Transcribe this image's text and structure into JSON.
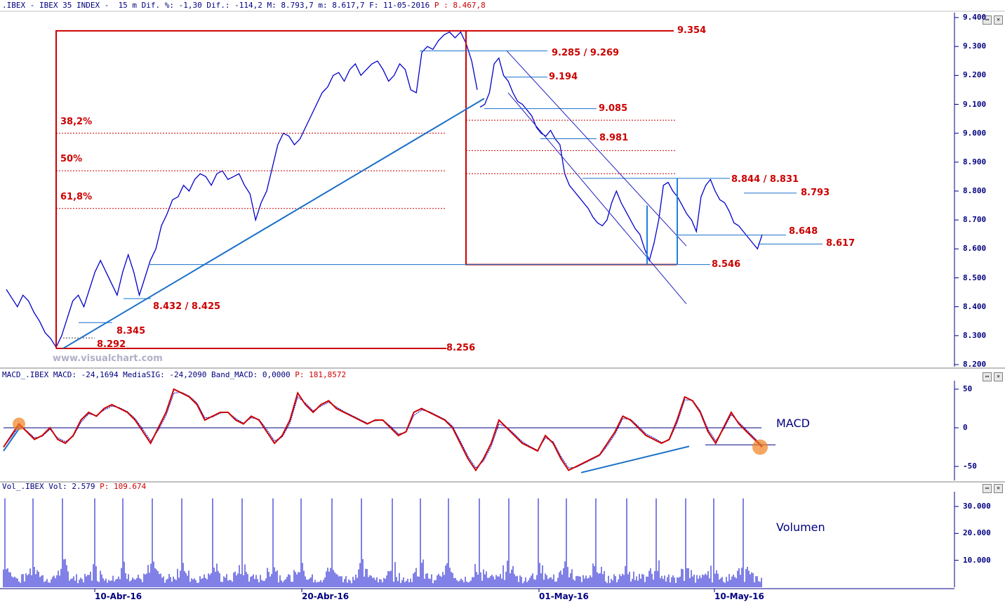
{
  "headers": {
    "price": {
      "label": ".IBEX - IBEX 35 INDEX -  15 m Dif. %: -1,30 Dif.: -114,2 M: 8.793,7 m: 8.617,7 F: 11-05-2016",
      "value": "P : 8.467,8"
    },
    "macd": {
      "label": "MACD_.IBEX MACD: -24,1694 MediaSIG: -24,2090 Band_MACD: 0,0000",
      "value": "P: 181,8572"
    },
    "volume": {
      "label": "Vol_.IBEX Vol: 2.579",
      "value": "P: 109.674"
    }
  },
  "watermark": "www.visualchart.com",
  "panel_labels": {
    "macd": "MACD",
    "volume": "Volumen"
  },
  "window_buttons": [
    "▭",
    "✕"
  ],
  "colors": {
    "price": "#0000cc",
    "macd": "#cc0000",
    "signal": "#0000cc",
    "annotation": "#cc0000",
    "trendline": "#1a6fc9",
    "fib": "#cc0000",
    "axis": "#000080"
  },
  "chart_data": [
    {
      "type": "line",
      "instrument": "IBEX 35 INDEX",
      "timeframe": "15 m",
      "ylim": [
        8200,
        9450
      ],
      "y_ticks": [
        "9.400",
        "9.300",
        "9.200",
        "9.100",
        "9.000",
        "8.900",
        "8.800",
        "8.700",
        "8.600",
        "8.500",
        "8.400",
        "8.300",
        "8.200"
      ],
      "x_ticks": [
        "10-Abr-16",
        "20-Abr-16",
        "01-May-16",
        "10-May-16"
      ],
      "series": [
        {
          "values": [
            8460,
            8430,
            8400,
            8440,
            8420,
            8380,
            8350,
            8310,
            8290,
            8260,
            8300,
            8360,
            8420,
            8440,
            8400,
            8460,
            8520,
            8560,
            8520,
            8480,
            8440,
            8520,
            8580,
            8520,
            8440,
            8500,
            8560,
            8600,
            8680,
            8720,
            8770,
            8780,
            8820,
            8800,
            8840,
            8860,
            8850,
            8820,
            8860,
            8870,
            8840,
            8850,
            8860,
            8820,
            8790,
            8700,
            8760,
            8800,
            8880,
            8960,
            9000,
            8990,
            8960,
            8980,
            9020,
            9060,
            9100,
            9140,
            9160,
            9200,
            9210,
            9180,
            9220,
            9240,
            9200,
            9220,
            9240,
            9250,
            9220,
            9180,
            9200,
            9240,
            9220,
            9150,
            9140,
            9280,
            9300,
            9290,
            9320,
            9340,
            9350,
            9330,
            9350,
            9310,
            9250,
            9150,
            9090,
            9100,
            9140,
            9240,
            9260,
            9200,
            9180,
            9140,
            9110,
            9100,
            9080,
            9060,
            9020,
            9000,
            8990,
            9010,
            8980,
            8960,
            8860,
            8820,
            8800,
            8780,
            8760,
            8740,
            8710,
            8690,
            8680,
            8700,
            8760,
            8800,
            8760,
            8730,
            8700,
            8670,
            8650,
            8600,
            8560,
            8620,
            8700,
            8820,
            8830,
            8800,
            8780,
            8750,
            8720,
            8700,
            8660,
            8780,
            8820,
            8840,
            8800,
            8770,
            8760,
            8730,
            8690,
            8680,
            8660,
            8640,
            8620,
            8600,
            8650
          ]
        }
      ],
      "annotations": [
        {
          "text": "9.354",
          "value": 9354
        },
        {
          "text": "9.285 / 9.269",
          "value": 9277
        },
        {
          "text": "9.194",
          "value": 9194
        },
        {
          "text": "9.085",
          "value": 9085
        },
        {
          "text": "8.981",
          "value": 8981
        },
        {
          "text": "8.844 / 8.831",
          "value": 8838
        },
        {
          "text": "8.793",
          "value": 8793
        },
        {
          "text": "8.648",
          "value": 8648
        },
        {
          "text": "8.617",
          "value": 8617
        },
        {
          "text": "8.546",
          "value": 8546
        },
        {
          "text": "8.432 / 8.425",
          "value": 8428
        },
        {
          "text": "8.345",
          "value": 8345
        },
        {
          "text": "8.292",
          "value": 8292
        },
        {
          "text": "8.256",
          "value": 8256
        }
      ],
      "fibonacci": [
        {
          "label": "38,2%",
          "value": 9000
        },
        {
          "label": "50%",
          "value": 8870
        },
        {
          "label": "61,8%",
          "value": 8740
        }
      ]
    },
    {
      "type": "line",
      "name": "MACD",
      "ylim": [
        -65,
        60
      ],
      "y_ticks": [
        "50",
        "0",
        "-50"
      ],
      "series": [
        {
          "values": [
            -25,
            -10,
            5,
            -5,
            -15,
            -10,
            0,
            -15,
            -20,
            -10,
            10,
            20,
            15,
            25,
            30,
            25,
            20,
            10,
            -5,
            -20,
            0,
            20,
            50,
            45,
            40,
            30,
            10,
            15,
            20,
            20,
            10,
            5,
            15,
            10,
            -5,
            -20,
            -10,
            10,
            45,
            30,
            20,
            30,
            35,
            25,
            20,
            15,
            10,
            5,
            10,
            10,
            0,
            -10,
            -5,
            20,
            25,
            20,
            15,
            10,
            0,
            -20,
            -40,
            -55,
            -40,
            -20,
            10,
            0,
            -10,
            -20,
            -25,
            -30,
            -10,
            -20,
            -40,
            -55,
            -50,
            -45,
            -40,
            -35,
            -20,
            -5,
            15,
            10,
            0,
            -10,
            -15,
            -20,
            -15,
            10,
            40,
            35,
            20,
            -5,
            -20,
            0,
            20,
            5,
            -5,
            -15,
            -25
          ]
        },
        {
          "name": "MediaSIG",
          "values": [
            -25,
            -12,
            2,
            -4,
            -13,
            -11,
            -2,
            -13,
            -18,
            -11,
            7,
            18,
            16,
            23,
            28,
            26,
            21,
            12,
            -2,
            -17,
            -3,
            16,
            45,
            46,
            41,
            32,
            13,
            14,
            19,
            20,
            12,
            6,
            13,
            11,
            -2,
            -17,
            -12,
            6,
            40,
            32,
            22,
            28,
            33,
            27,
            21,
            16,
            11,
            6,
            9,
            10,
            2,
            -8,
            -6,
            16,
            23,
            21,
            16,
            11,
            2,
            -17,
            -37,
            -52,
            -43,
            -24,
            5,
            1,
            -8,
            -18,
            -24,
            -29,
            -13,
            -18,
            -37,
            -52,
            -51,
            -46,
            -41,
            -36,
            -23,
            -8,
            12,
            11,
            2,
            -8,
            -13,
            -19,
            -16,
            6,
            36,
            36,
            22,
            -2,
            -17,
            -2,
            17,
            7,
            -3,
            -13,
            -23
          ]
        }
      ]
    },
    {
      "type": "bar",
      "name": "Vol",
      "ylim": [
        0,
        35000
      ],
      "y_ticks": [
        "30.000",
        "20.000",
        "10.000"
      ]
    }
  ]
}
